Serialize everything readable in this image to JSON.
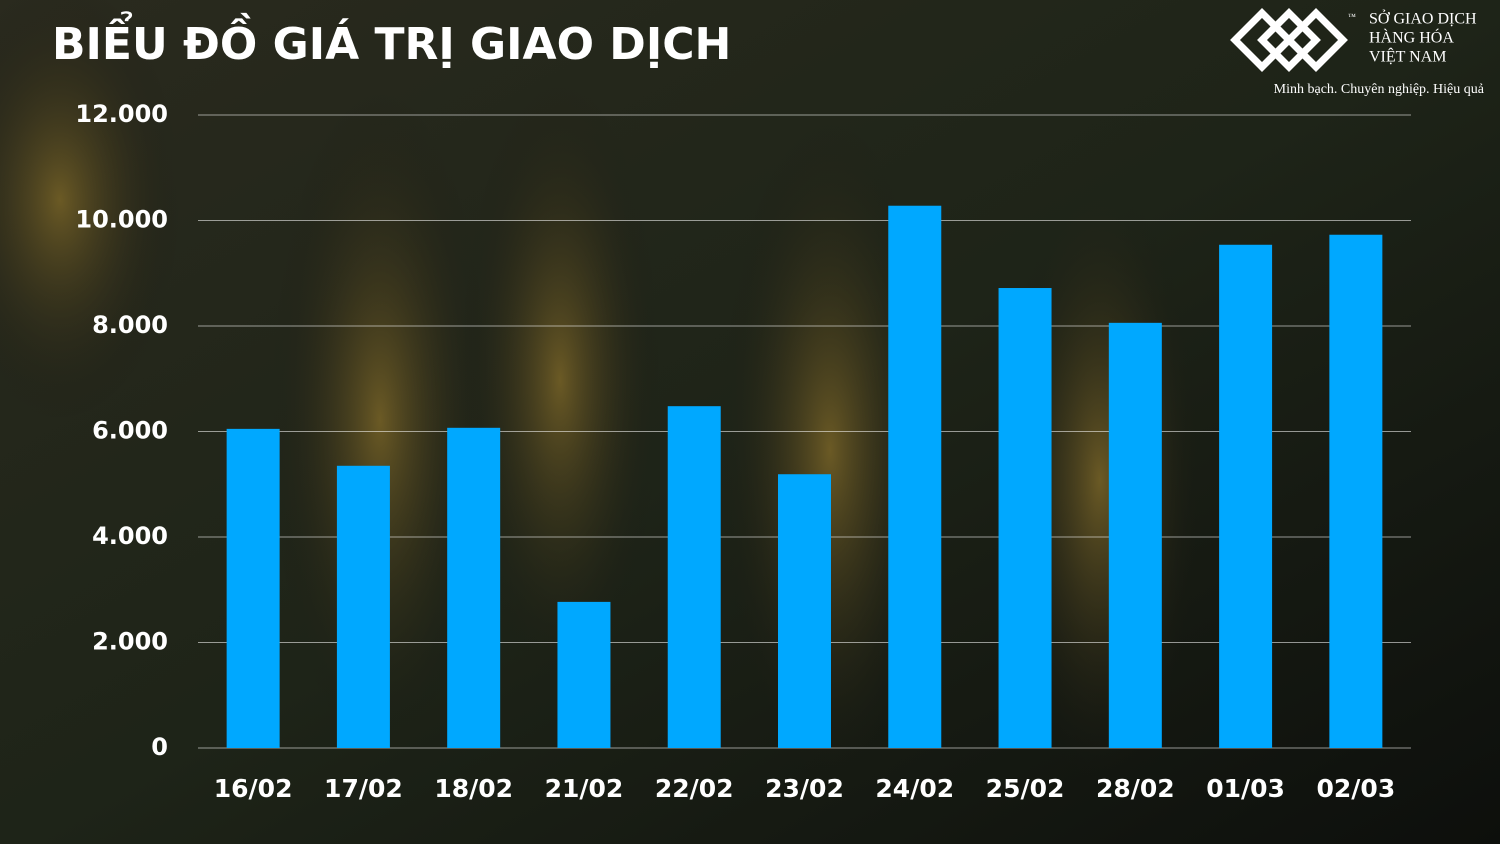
{
  "chart_data": {
    "type": "bar",
    "title": "BIỂU ĐỒ GIÁ TRỊ GIAO DỊCH",
    "logo": {
      "trademark": "™",
      "line1": "SỞ GIAO DỊCH",
      "line2": "HÀNG HÓA",
      "line3": "VIỆT NAM",
      "slogan": "Minh bạch. Chuyên nghiệp. Hiệu quả"
    },
    "categories": [
      "16/02",
      "17/02",
      "18/02",
      "21/02",
      "22/02",
      "23/02",
      "24/02",
      "25/02",
      "28/02",
      "01/03",
      "02/03"
    ],
    "values": [
      6050,
      5350,
      6070,
      2770,
      6480,
      5190,
      10280,
      8720,
      8060,
      9540,
      9730
    ],
    "color": "#00a8ff",
    "ylim": [
      0,
      12000
    ],
    "yticks": [
      0,
      {
        "value": 2000,
        "label": "2.000"
      },
      {
        "value": 4000,
        "label": "4.000"
      },
      {
        "value": 6000,
        "label": "6.000"
      },
      {
        "value": 8000,
        "label": "8.000"
      },
      {
        "value": 10000,
        "label": "10.000"
      },
      {
        "value": 12000,
        "label": "12.000"
      }
    ],
    "grid": true
  }
}
